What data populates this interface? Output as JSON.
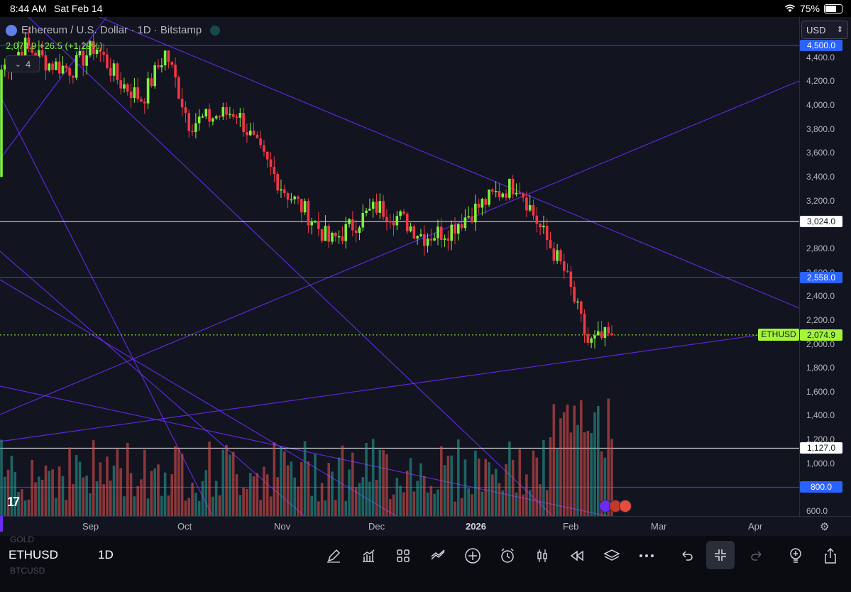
{
  "status_bar": {
    "time": "8:44 AM",
    "date": "Sat Feb 14",
    "battery": "75%",
    "battery_level": 0.75
  },
  "legend": {
    "title": "Ethereum / U.S. Dollar · 1D · Bitstamp",
    "ohlc": "2,074.9 +26.5 (+1.29%)",
    "collapsed_count": "4"
  },
  "currency_select": "USD",
  "price_axis": {
    "ticks": [
      "4,400.0",
      "4,200.0",
      "4,000.0",
      "3,800.0",
      "3,600.0",
      "3,400.0",
      "3,200.0",
      "2,800.0",
      "2,600.0",
      "2,400.0",
      "2,200.0",
      "2,000.0",
      "1,800.0",
      "1,600.0",
      "1,400.0",
      "1,200.0",
      "1,000.0",
      "600.0"
    ],
    "tick_values": [
      4400,
      4200,
      4000,
      3800,
      3600,
      3400,
      3200,
      2800,
      2600,
      2400,
      2200,
      2000,
      1800,
      1600,
      1400,
      1200,
      1000,
      600
    ]
  },
  "horizontal_lines": [
    {
      "label": "4,500.0",
      "value": 4500,
      "color": "#2962ff",
      "style": "blue"
    },
    {
      "label": "3,024.0",
      "value": 3024,
      "color": "#ffffff",
      "style": "white"
    },
    {
      "label": "2,558.0",
      "value": 2558,
      "color": "#2962ff",
      "style": "blue"
    },
    {
      "label": "1,127.0",
      "value": 1127,
      "color": "#ffffff",
      "style": "white"
    },
    {
      "label": "800.0",
      "value": 800,
      "color": "#2962ff",
      "style": "blue"
    }
  ],
  "last_price": {
    "symbol": "ETHUSD",
    "label": "2,074.9",
    "value": 2074.9,
    "color": "#a4f53a"
  },
  "time_axis": {
    "labels": [
      "Sep",
      "Oct",
      "Nov",
      "Dec",
      "2026",
      "Feb",
      "Mar",
      "Apr"
    ],
    "bold_label": "2026"
  },
  "colors": {
    "up": "#7cf23a",
    "down": "#f23645",
    "volume_up": "#26a69a",
    "volume_down": "#ef5350",
    "background": "#121420",
    "trendline": "#6a2cf5"
  },
  "bottom_toolbar": {
    "symbol": "ETHUSD",
    "interval": "1D",
    "ghost_symbols": [
      "GOLD",
      "BTCUSD"
    ],
    "icons": [
      "pen-icon",
      "chart-type-icon",
      "indicators-grid-icon",
      "compare-icon",
      "add-icon",
      "alert-icon",
      "candles-icon",
      "replay-icon",
      "layers-icon",
      "more-icon",
      "undo-icon",
      "fullscreen-exit-icon",
      "redo-icon",
      "bulb-icon",
      "share-icon"
    ]
  },
  "chart_data": {
    "type": "candlestick",
    "title": "Ethereum / U.S. Dollar · 1D · Bitstamp",
    "ylim": [
      600,
      4700
    ],
    "x": [
      "Aug 15",
      "Aug 22",
      "Aug 29",
      "Sep 5",
      "Sep 12",
      "Sep 19",
      "Sep 26",
      "Oct 3",
      "Oct 10",
      "Oct 17",
      "Oct 24",
      "Oct 31",
      "Nov 7",
      "Nov 14",
      "Nov 21",
      "Nov 28",
      "Dec 5",
      "Dec 12",
      "Dec 19",
      "Dec 26",
      "Jan 2",
      "Jan 9",
      "Jan 16",
      "Jan 23",
      "Jan 30",
      "Feb 6",
      "Feb 13"
    ],
    "close": [
      4300,
      4500,
      4350,
      4300,
      4500,
      4200,
      4050,
      4450,
      3850,
      3900,
      3950,
      3600,
      3300,
      3100,
      2850,
      3000,
      3150,
      3050,
      2900,
      2950,
      3100,
      3250,
      3350,
      2950,
      2600,
      2000,
      2074.9
    ],
    "volume_scale": "relative"
  }
}
